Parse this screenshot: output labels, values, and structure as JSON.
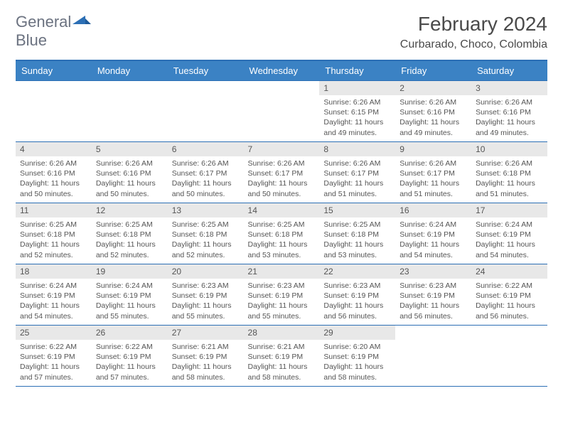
{
  "logo": {
    "word1": "General",
    "word2": "Blue"
  },
  "title": "February 2024",
  "subtitle": "Curbarado, Choco, Colombia",
  "colors": {
    "header_bg": "#3b82c4",
    "header_border": "#2c6fb5",
    "daynum_bg": "#e8e8e8",
    "text": "#555555",
    "title_text": "#4a4a4a"
  },
  "day_headers": [
    "Sunday",
    "Monday",
    "Tuesday",
    "Wednesday",
    "Thursday",
    "Friday",
    "Saturday"
  ],
  "weeks": [
    [
      null,
      null,
      null,
      null,
      {
        "n": "1",
        "sr": "6:26 AM",
        "ss": "6:15 PM",
        "dl": "11 hours and 49 minutes."
      },
      {
        "n": "2",
        "sr": "6:26 AM",
        "ss": "6:16 PM",
        "dl": "11 hours and 49 minutes."
      },
      {
        "n": "3",
        "sr": "6:26 AM",
        "ss": "6:16 PM",
        "dl": "11 hours and 49 minutes."
      }
    ],
    [
      {
        "n": "4",
        "sr": "6:26 AM",
        "ss": "6:16 PM",
        "dl": "11 hours and 50 minutes."
      },
      {
        "n": "5",
        "sr": "6:26 AM",
        "ss": "6:16 PM",
        "dl": "11 hours and 50 minutes."
      },
      {
        "n": "6",
        "sr": "6:26 AM",
        "ss": "6:17 PM",
        "dl": "11 hours and 50 minutes."
      },
      {
        "n": "7",
        "sr": "6:26 AM",
        "ss": "6:17 PM",
        "dl": "11 hours and 50 minutes."
      },
      {
        "n": "8",
        "sr": "6:26 AM",
        "ss": "6:17 PM",
        "dl": "11 hours and 51 minutes."
      },
      {
        "n": "9",
        "sr": "6:26 AM",
        "ss": "6:17 PM",
        "dl": "11 hours and 51 minutes."
      },
      {
        "n": "10",
        "sr": "6:26 AM",
        "ss": "6:18 PM",
        "dl": "11 hours and 51 minutes."
      }
    ],
    [
      {
        "n": "11",
        "sr": "6:25 AM",
        "ss": "6:18 PM",
        "dl": "11 hours and 52 minutes."
      },
      {
        "n": "12",
        "sr": "6:25 AM",
        "ss": "6:18 PM",
        "dl": "11 hours and 52 minutes."
      },
      {
        "n": "13",
        "sr": "6:25 AM",
        "ss": "6:18 PM",
        "dl": "11 hours and 52 minutes."
      },
      {
        "n": "14",
        "sr": "6:25 AM",
        "ss": "6:18 PM",
        "dl": "11 hours and 53 minutes."
      },
      {
        "n": "15",
        "sr": "6:25 AM",
        "ss": "6:18 PM",
        "dl": "11 hours and 53 minutes."
      },
      {
        "n": "16",
        "sr": "6:24 AM",
        "ss": "6:19 PM",
        "dl": "11 hours and 54 minutes."
      },
      {
        "n": "17",
        "sr": "6:24 AM",
        "ss": "6:19 PM",
        "dl": "11 hours and 54 minutes."
      }
    ],
    [
      {
        "n": "18",
        "sr": "6:24 AM",
        "ss": "6:19 PM",
        "dl": "11 hours and 54 minutes."
      },
      {
        "n": "19",
        "sr": "6:24 AM",
        "ss": "6:19 PM",
        "dl": "11 hours and 55 minutes."
      },
      {
        "n": "20",
        "sr": "6:23 AM",
        "ss": "6:19 PM",
        "dl": "11 hours and 55 minutes."
      },
      {
        "n": "21",
        "sr": "6:23 AM",
        "ss": "6:19 PM",
        "dl": "11 hours and 55 minutes."
      },
      {
        "n": "22",
        "sr": "6:23 AM",
        "ss": "6:19 PM",
        "dl": "11 hours and 56 minutes."
      },
      {
        "n": "23",
        "sr": "6:23 AM",
        "ss": "6:19 PM",
        "dl": "11 hours and 56 minutes."
      },
      {
        "n": "24",
        "sr": "6:22 AM",
        "ss": "6:19 PM",
        "dl": "11 hours and 56 minutes."
      }
    ],
    [
      {
        "n": "25",
        "sr": "6:22 AM",
        "ss": "6:19 PM",
        "dl": "11 hours and 57 minutes."
      },
      {
        "n": "26",
        "sr": "6:22 AM",
        "ss": "6:19 PM",
        "dl": "11 hours and 57 minutes."
      },
      {
        "n": "27",
        "sr": "6:21 AM",
        "ss": "6:19 PM",
        "dl": "11 hours and 58 minutes."
      },
      {
        "n": "28",
        "sr": "6:21 AM",
        "ss": "6:19 PM",
        "dl": "11 hours and 58 minutes."
      },
      {
        "n": "29",
        "sr": "6:20 AM",
        "ss": "6:19 PM",
        "dl": "11 hours and 58 minutes."
      },
      null,
      null
    ]
  ],
  "labels": {
    "sunrise": "Sunrise:",
    "sunset": "Sunset:",
    "daylight": "Daylight:"
  }
}
